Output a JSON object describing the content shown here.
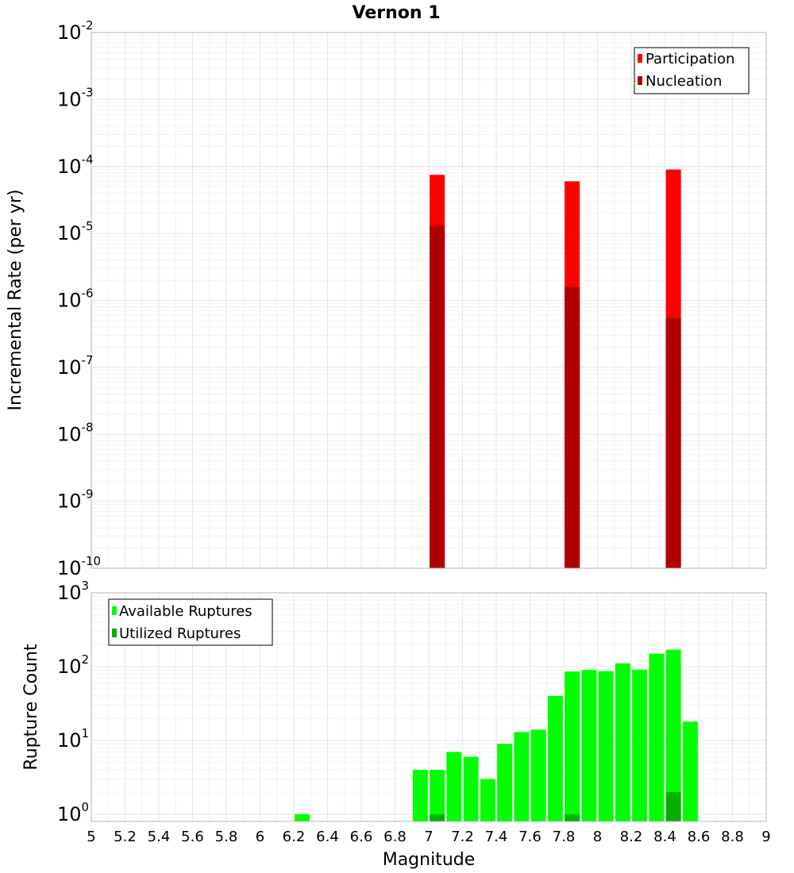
{
  "chart_data": [
    {
      "type": "bar",
      "title": "Vernon 1",
      "ylabel": "Incremental Rate (per yr)",
      "ylim": [
        1e-10,
        0.01
      ],
      "yscale": "log",
      "xlim": [
        5,
        9
      ],
      "grid": true,
      "legend_position": "top-right",
      "legend": [
        "Participation",
        "Nucleation"
      ],
      "series": [
        {
          "name": "Participation",
          "color": "#ff0000",
          "x": [
            7.05,
            7.85,
            8.45
          ],
          "values": [
            7.5e-05,
            6e-05,
            9e-05
          ]
        },
        {
          "name": "Nucleation",
          "color": "#b00000",
          "x": [
            7.05,
            7.85,
            8.45
          ],
          "values": [
            1.3e-05,
            1.6e-06,
            5.5e-07
          ]
        }
      ],
      "y_ticks": [
        {
          "base": "10",
          "exp": "-10"
        },
        {
          "base": "10",
          "exp": "-9"
        },
        {
          "base": "10",
          "exp": "-8"
        },
        {
          "base": "10",
          "exp": "-7"
        },
        {
          "base": "10",
          "exp": "-6"
        },
        {
          "base": "10",
          "exp": "-5"
        },
        {
          "base": "10",
          "exp": "-4"
        },
        {
          "base": "10",
          "exp": "-3"
        },
        {
          "base": "10",
          "exp": "-2"
        }
      ]
    },
    {
      "type": "bar",
      "xlabel": "Magnitude",
      "ylabel": "Rupture Count",
      "ylim": [
        0.8,
        1000
      ],
      "yscale": "log",
      "xlim": [
        5,
        9
      ],
      "grid": true,
      "legend_position": "top-left",
      "legend": [
        "Available Ruptures",
        "Utilized Ruptures"
      ],
      "series": [
        {
          "name": "Available Ruptures",
          "color": "#00ff00",
          "x": [
            6.25,
            6.95,
            7.05,
            7.15,
            7.25,
            7.35,
            7.45,
            7.55,
            7.65,
            7.75,
            7.85,
            7.95,
            8.05,
            8.15,
            8.25,
            8.35,
            8.45,
            8.55
          ],
          "values": [
            1,
            4,
            4,
            7,
            6,
            3,
            9,
            13,
            14,
            40,
            86,
            90,
            87,
            111,
            91,
            150,
            170,
            18
          ]
        },
        {
          "name": "Utilized Ruptures",
          "color": "#00b000",
          "x": [
            7.05,
            7.85,
            8.45
          ],
          "values": [
            1,
            1,
            2
          ]
        }
      ],
      "y_ticks": [
        {
          "base": "10",
          "exp": "0"
        },
        {
          "base": "10",
          "exp": "1"
        },
        {
          "base": "10",
          "exp": "2"
        },
        {
          "base": "10",
          "exp": "3"
        }
      ],
      "x_ticks": [
        "5",
        "5.2",
        "5.4",
        "5.6",
        "5.8",
        "6",
        "6.2",
        "6.4",
        "6.6",
        "6.8",
        "7",
        "7.2",
        "7.4",
        "7.6",
        "7.8",
        "8",
        "8.2",
        "8.4",
        "8.6",
        "8.8",
        "9"
      ]
    }
  ]
}
